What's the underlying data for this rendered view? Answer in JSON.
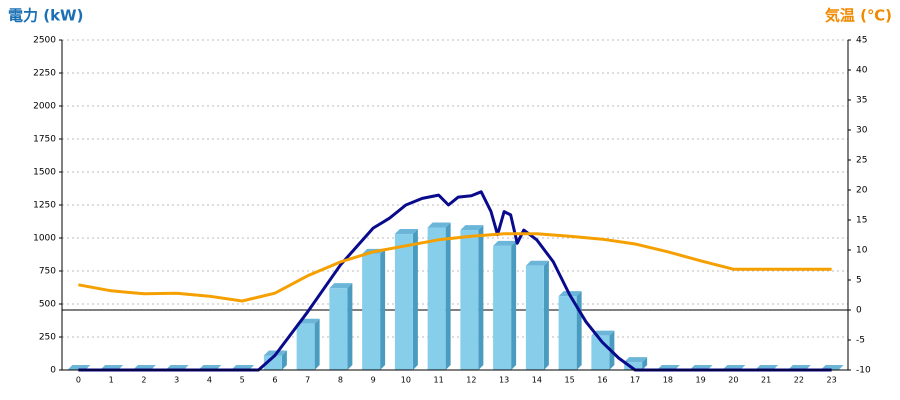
{
  "chart_data": {
    "type": "combo",
    "ylabel": "電力 (kW)",
    "y2label": "気温 (℃)",
    "categories": [
      0,
      1,
      2,
      3,
      4,
      5,
      6,
      7,
      8,
      9,
      10,
      11,
      12,
      13,
      14,
      15,
      16,
      17,
      18,
      19,
      20,
      21,
      22,
      23
    ],
    "ylim": [
      0,
      2500
    ],
    "yticks": [
      0,
      250,
      500,
      750,
      1000,
      1250,
      1500,
      1750,
      2000,
      2250,
      2500
    ],
    "y2lim": [
      -10,
      45
    ],
    "y2ticks": [
      -10,
      -5,
      0,
      5,
      10,
      15,
      20,
      25,
      30,
      35,
      40,
      45
    ],
    "grid": true,
    "series": [
      {
        "type": "bar",
        "color": "#87ceeb",
        "values": [
          0,
          0,
          0,
          0,
          0,
          0,
          110,
          350,
          620,
          880,
          1030,
          1080,
          1060,
          940,
          790,
          560,
          260,
          60,
          0,
          0,
          0,
          0,
          0,
          0
        ]
      },
      {
        "type": "line",
        "color": "#0a0a8c",
        "x": [
          0,
          5.5,
          6,
          7,
          8,
          9,
          9.5,
          10,
          10.5,
          11,
          11.3,
          11.6,
          12,
          12.3,
          12.6,
          12.8,
          13,
          13.2,
          13.4,
          13.6,
          14,
          14.5,
          15,
          15.5,
          16,
          16.5,
          17,
          23
        ],
        "values": [
          0,
          0,
          110,
          440,
          795,
          1075,
          1150,
          1250,
          1300,
          1325,
          1250,
          1310,
          1320,
          1350,
          1200,
          1025,
          1200,
          1175,
          960,
          1060,
          985,
          820,
          570,
          365,
          210,
          90,
          0,
          0
        ]
      },
      {
        "type": "line",
        "axis": "y2",
        "color": "#f5a000",
        "values": [
          4.2,
          3.2,
          2.7,
          2.8,
          2.3,
          1.5,
          2.8,
          5.7,
          8,
          9.7,
          10.7,
          11.7,
          12.3,
          12.7,
          12.7,
          12.3,
          11.8,
          11,
          9.7,
          8.2,
          6.8,
          6.8,
          6.8,
          6.8
        ]
      }
    ]
  }
}
